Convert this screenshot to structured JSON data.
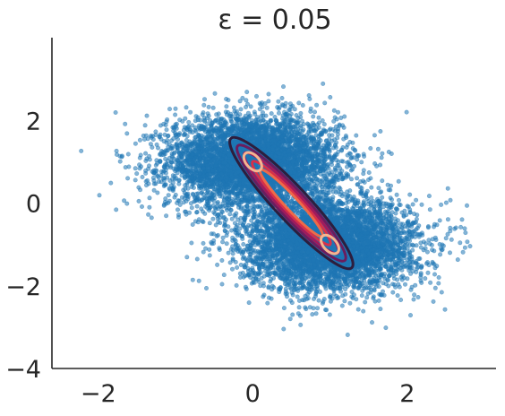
{
  "chart_data": {
    "type": "scatter",
    "title": "ε = 0.05",
    "xlabel": "",
    "ylabel": "",
    "xlim": [
      -2.6,
      3.15
    ],
    "ylim": [
      -4,
      4.0
    ],
    "x_ticks": [
      -2,
      0,
      2
    ],
    "y_ticks": [
      -4,
      -2,
      0,
      2
    ],
    "grid": false,
    "legend": "none",
    "scatter": {
      "color": "#1f77b4",
      "opacity": 0.55,
      "clusters": [
        {
          "center": [
            0,
            1
          ],
          "spread": [
            0.55,
            0.55
          ],
          "correlation": 0.0
        },
        {
          "center": [
            1,
            -1
          ],
          "spread": [
            0.55,
            0.55
          ],
          "correlation": 0.0
        }
      ],
      "approx_count": 10000
    },
    "contours": {
      "description_values": "density level rings of the coupled distribution along the anti-diagonal",
      "center_path": [
        [
          0,
          1
        ],
        [
          1,
          -1
        ]
      ],
      "levels": [
        {
          "color": "#2d1e3e",
          "rx": 1.75,
          "ry": 0.33
        },
        {
          "color": "#6b1d5e",
          "rx": 1.55,
          "ry": 0.27
        },
        {
          "color": "#a11a5b",
          "rx": 1.35,
          "ry": 0.22
        },
        {
          "color": "#d6304a",
          "rx": 1.12,
          "ry": 0.17
        },
        {
          "color": "#ef6a48",
          "rx": 0.9,
          "ry": 0.13
        }
      ],
      "inner_peaks": [
        {
          "center": [
            0,
            1
          ],
          "color": "#f6b48f",
          "rx": 0.22,
          "ry": 0.13
        },
        {
          "center": [
            1,
            -1
          ],
          "color": "#f6b48f",
          "rx": 0.22,
          "ry": 0.13
        }
      ]
    }
  }
}
